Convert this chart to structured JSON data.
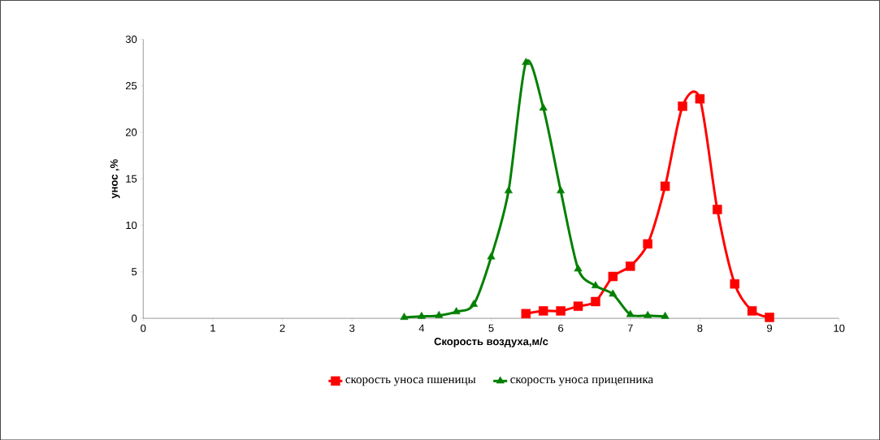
{
  "chart_data": {
    "type": "line",
    "xlabel": "Скорость воздуха,м/с",
    "ylabel": "унос ,%",
    "xlim": [
      0,
      10
    ],
    "xticks": [
      0,
      1,
      2,
      3,
      4,
      5,
      6,
      7,
      8,
      9,
      10
    ],
    "ylim": [
      0,
      30
    ],
    "yticks": [
      0,
      5,
      10,
      15,
      20,
      25,
      30
    ],
    "grid": false,
    "legend": "bottom",
    "line_style": "solid",
    "series": [
      {
        "name": "скорость уноса пшеницы",
        "color": "#ff0000",
        "marker": "square",
        "x": [
          5.5,
          5.75,
          6.0,
          6.25,
          6.5,
          6.75,
          7.0,
          7.25,
          7.5,
          7.75,
          8.0,
          8.25,
          8.5,
          8.75,
          9.0
        ],
        "values": [
          0.5,
          0.8,
          0.8,
          1.3,
          1.8,
          4.5,
          5.6,
          8.0,
          14.2,
          22.8,
          23.6,
          11.7,
          3.7,
          0.8,
          0.1
        ]
      },
      {
        "name": "скорость уноса прицепника",
        "color": "#008000",
        "marker": "triangle",
        "x": [
          3.75,
          4.0,
          4.25,
          4.5,
          4.75,
          5.0,
          5.25,
          5.5,
          5.75,
          6.0,
          6.25,
          6.5,
          6.75,
          7.0,
          7.25,
          7.5
        ],
        "values": [
          0.1,
          0.2,
          0.3,
          0.7,
          1.5,
          6.6,
          13.7,
          27.5,
          22.6,
          13.7,
          5.3,
          3.5,
          2.6,
          0.4,
          0.3,
          0.2
        ]
      }
    ]
  }
}
